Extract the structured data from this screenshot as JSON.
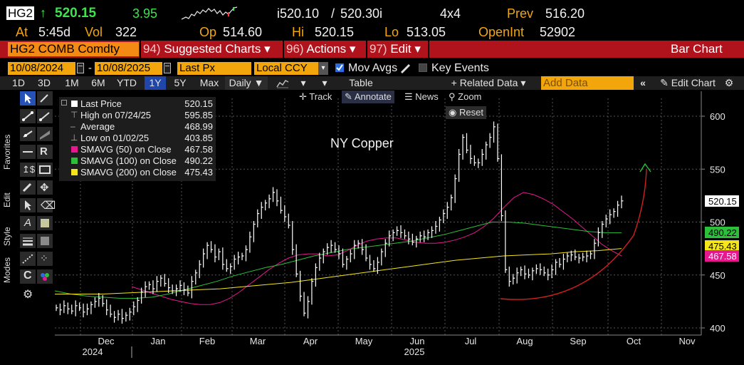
{
  "quote": {
    "ticker": "HG2",
    "arrow": "↑",
    "last": "520.15",
    "change": "3.95",
    "bid": "i520.10",
    "ask": "520.30i",
    "size": "4x4",
    "prev_label": "Prev",
    "prev": "516.20",
    "at_label": "At",
    "time": "5:45d",
    "vol_label": "Vol",
    "vol": "322",
    "open_label": "Op",
    "open": "514.60",
    "hi_label": "Hi",
    "hi": "520.15",
    "lo_label": "Lo",
    "lo": "513.05",
    "oi_label": "OpenInt",
    "oi": "52902"
  },
  "command_bar": {
    "security": "HG2 COMB Comdty",
    "items": [
      {
        "num": "94)",
        "label": "Suggested Charts ▾"
      },
      {
        "num": "96)",
        "label": "Actions ▾"
      },
      {
        "num": "97)",
        "label": "Edit ▾"
      }
    ],
    "title": "Bar Chart"
  },
  "params": {
    "start_date": "10/08/2024",
    "dash": "-",
    "end_date": "10/08/2025",
    "field": "Last Px",
    "currency": "Local CCY",
    "mov_avgs": "Mov Avgs",
    "key_events": "Key Events"
  },
  "toolbar": {
    "ranges": [
      "1D",
      "3D",
      "1M",
      "6M",
      "YTD",
      "1Y",
      "5Y",
      "Max"
    ],
    "active_range": "1Y",
    "period": "Daily ▼",
    "table": "Table",
    "related": "+ Related Data ▾",
    "add_data_placeholder": "Add Data",
    "edit_chart": "Edit Chart"
  },
  "chart_tools": {
    "track": "Track",
    "annotate": "Annotate",
    "news": "News",
    "zoom": "Zoom",
    "reset": "Reset"
  },
  "side_tabs": [
    "Favorites",
    "Edit",
    "Style",
    "Modes"
  ],
  "legend": [
    {
      "name": "Last Price",
      "value": "520.15",
      "color": "#ffffff",
      "kind": "box"
    },
    {
      "name": "High on 07/24/25",
      "value": "595.85",
      "kind": "sym"
    },
    {
      "name": "Average",
      "value": "468.99",
      "kind": "sym"
    },
    {
      "name": "Low on 01/02/25",
      "value": "403.85",
      "kind": "sym"
    },
    {
      "name": "SMAVG (50)  on Close",
      "value": "467.58",
      "color": "#e5188f",
      "kind": "box"
    },
    {
      "name": "SMAVG (100)  on Close",
      "value": "490.22",
      "color": "#2bbf3a",
      "kind": "box"
    },
    {
      "name": "SMAVG (200)  on Close",
      "value": "475.43",
      "color": "#f5e61c",
      "kind": "box"
    }
  ],
  "chart_data": {
    "type": "bar",
    "title": "NY Copper",
    "y_ticks": [
      400,
      450,
      500,
      550,
      600
    ],
    "ylim": [
      395,
      615
    ],
    "x_month_labels": [
      "Dec",
      "Jan",
      "Feb",
      "Mar",
      "Apr",
      "May",
      "Jun",
      "Jul",
      "Aug",
      "Sep",
      "Oct",
      "Nov"
    ],
    "x_year_labels": [
      "2024",
      "2025"
    ],
    "last_price": 520.15,
    "right_axis_badges": [
      {
        "value": "520.15",
        "v": 520.15,
        "bg": "#ffffff",
        "fg": "#000000"
      },
      {
        "value": "490.22",
        "v": 490.22,
        "bg": "#2bbf3a",
        "fg": "#000000"
      },
      {
        "value": "475.43",
        "v": 475.43,
        "bg": "#f5e61c",
        "fg": "#000000"
      },
      {
        "value": "467.58",
        "v": 467.58,
        "bg": "#e5188f",
        "fg": "#ffffff"
      }
    ],
    "series": [
      {
        "name": "Last Price",
        "color": "#ffffff",
        "values": [
          419,
          417,
          421,
          418,
          416,
          421,
          419,
          415,
          418,
          422,
          425,
          428,
          423,
          417,
          413,
          410,
          413,
          409,
          412,
          415,
          420,
          426,
          434,
          439,
          441,
          437,
          444,
          447,
          442,
          438,
          435,
          437,
          440,
          436,
          433,
          444,
          452,
          460,
          470,
          478,
          474,
          467,
          472,
          460,
          456,
          458,
          465,
          467,
          468,
          474,
          486,
          498,
          508,
          514,
          518,
          522,
          528,
          520,
          511,
          505,
          497,
          474,
          451,
          430,
          414,
          425,
          444,
          457,
          466,
          472,
          476,
          478,
          474,
          470,
          460,
          465,
          470,
          478,
          480,
          474,
          466,
          460,
          456,
          462,
          472,
          480,
          487,
          490,
          492,
          490,
          487,
          484,
          481,
          484,
          487,
          486,
          490,
          492,
          496,
          502,
          508,
          514,
          523,
          541,
          564,
          580,
          568,
          560,
          556,
          556,
          564,
          573,
          580,
          590,
          560,
          506,
          455,
          444,
          447,
          452,
          455,
          451,
          450,
          454,
          456,
          455,
          452,
          450,
          455,
          462,
          460,
          465,
          468,
          469,
          467,
          466,
          467,
          468,
          470,
          480,
          490,
          498,
          503,
          507,
          510,
          516,
          520
        ]
      },
      {
        "name": "SMAVG (50)",
        "color": "#e5188f",
        "values": [
          439,
          436,
          433,
          430,
          427,
          425,
          423,
          422,
          422,
          424,
          428,
          434,
          441,
          448,
          455,
          461,
          466,
          469,
          470,
          470,
          468,
          469,
          473,
          478,
          482,
          484,
          485,
          485,
          483,
          481,
          480,
          480,
          481,
          483,
          486,
          490,
          496,
          504,
          514,
          523,
          528,
          526,
          522,
          517,
          510,
          503,
          495,
          487,
          479,
          473,
          468
        ]
      },
      {
        "name": "SMAVG (100)",
        "color": "#2bbf3a",
        "values": [
          435,
          432,
          430,
          429,
          428,
          428,
          429,
          432,
          436,
          440,
          444,
          449,
          453,
          457,
          460,
          464,
          468,
          471,
          474,
          476,
          478,
          480,
          482,
          485,
          488,
          492,
          496,
          500,
          500,
          499,
          497,
          495,
          493,
          491,
          490,
          490
        ]
      },
      {
        "name": "SMAVG (200)",
        "color": "#f5e61c",
        "values": [
          432,
          432,
          432,
          433,
          434,
          435,
          436,
          437,
          439,
          441,
          443,
          446,
          449,
          452,
          455,
          458,
          461,
          464,
          466,
          468,
          469,
          470,
          472,
          473,
          475
        ]
      }
    ]
  }
}
